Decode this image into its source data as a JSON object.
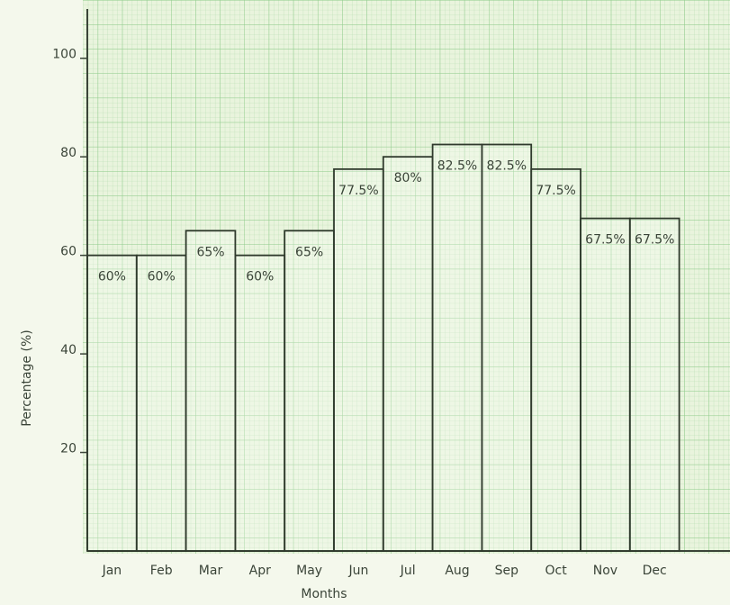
{
  "chart_data": {
    "type": "bar",
    "x_label": "Months",
    "y_label": "Percentage (%)",
    "categories": [
      "Jan",
      "Feb",
      "Mar",
      "Apr",
      "May",
      "Jun",
      "Jul",
      "Aug",
      "Sep",
      "Oct",
      "Nov",
      "Dec"
    ],
    "values": [
      60,
      60,
      65,
      60,
      65,
      77.5,
      80,
      82.5,
      82.5,
      77.5,
      67.5,
      67.5
    ],
    "value_labels": [
      "60%",
      "60%",
      "65%",
      "60%",
      "65%",
      "77.5%",
      "80%",
      "82.5%",
      "82.5%",
      "77.5%",
      "67.5%",
      "67.5%"
    ],
    "ylim": [
      0,
      110
    ],
    "yticks": [
      20,
      40,
      60,
      80,
      100
    ],
    "color": "#2f3a2c"
  }
}
